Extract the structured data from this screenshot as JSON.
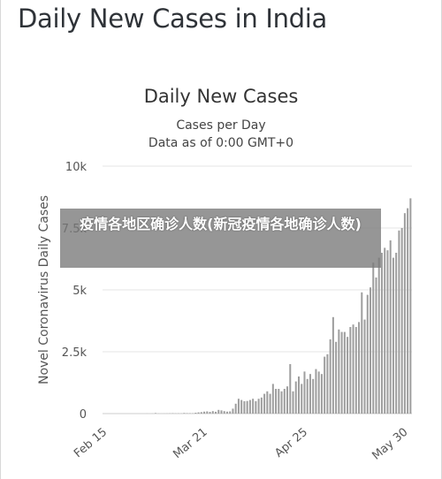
{
  "page": {
    "title": "Daily New Cases in India",
    "overlay_text": "疫情各地区确诊人数(新冠疫情各地确诊人数)"
  },
  "colors": {
    "bar": "#9e9e9e",
    "grid": "#e6e6e6",
    "axis": "#cccccc"
  },
  "chart_data": {
    "type": "bar",
    "title": "Daily New Cases",
    "subtitle_1": "Cases per Day",
    "subtitle_2": "Data as of 0:00 GMT+0",
    "ylabel": "Novel Coronavirus Daily Cases",
    "xlabel": "",
    "ylim": [
      0,
      10000
    ],
    "yticks": [
      "0",
      "2.5k",
      "5k",
      "7.5k",
      "10k"
    ],
    "ytick_values": [
      0,
      2500,
      5000,
      7500,
      10000
    ],
    "xtick_labels": [
      "Feb 15",
      "Mar 21",
      "Apr 25",
      "May 30"
    ],
    "xtick_dates": [
      "2020-02-15",
      "2020-03-21",
      "2020-04-25",
      "2020-05-30"
    ],
    "x": [
      "2020-02-15",
      "2020-02-16",
      "2020-02-17",
      "2020-02-18",
      "2020-02-19",
      "2020-02-20",
      "2020-02-21",
      "2020-02-22",
      "2020-02-23",
      "2020-02-24",
      "2020-02-25",
      "2020-02-26",
      "2020-02-27",
      "2020-02-28",
      "2020-02-29",
      "2020-03-01",
      "2020-03-02",
      "2020-03-03",
      "2020-03-04",
      "2020-03-05",
      "2020-03-06",
      "2020-03-07",
      "2020-03-08",
      "2020-03-09",
      "2020-03-10",
      "2020-03-11",
      "2020-03-12",
      "2020-03-13",
      "2020-03-14",
      "2020-03-15",
      "2020-03-16",
      "2020-03-17",
      "2020-03-18",
      "2020-03-19",
      "2020-03-20",
      "2020-03-21",
      "2020-03-22",
      "2020-03-23",
      "2020-03-24",
      "2020-03-25",
      "2020-03-26",
      "2020-03-27",
      "2020-03-28",
      "2020-03-29",
      "2020-03-30",
      "2020-03-31",
      "2020-04-01",
      "2020-04-02",
      "2020-04-03",
      "2020-04-04",
      "2020-04-05",
      "2020-04-06",
      "2020-04-07",
      "2020-04-08",
      "2020-04-09",
      "2020-04-10",
      "2020-04-11",
      "2020-04-12",
      "2020-04-13",
      "2020-04-14",
      "2020-04-15",
      "2020-04-16",
      "2020-04-17",
      "2020-04-18",
      "2020-04-19",
      "2020-04-20",
      "2020-04-21",
      "2020-04-22",
      "2020-04-23",
      "2020-04-24",
      "2020-04-25",
      "2020-04-26",
      "2020-04-27",
      "2020-04-28",
      "2020-04-29",
      "2020-04-30",
      "2020-05-01",
      "2020-05-02",
      "2020-05-03",
      "2020-05-04",
      "2020-05-05",
      "2020-05-06",
      "2020-05-07",
      "2020-05-08",
      "2020-05-09",
      "2020-05-10",
      "2020-05-11",
      "2020-05-12",
      "2020-05-13",
      "2020-05-14",
      "2020-05-15",
      "2020-05-16",
      "2020-05-17",
      "2020-05-18",
      "2020-05-19",
      "2020-05-20",
      "2020-05-21",
      "2020-05-22",
      "2020-05-23",
      "2020-05-24",
      "2020-05-25",
      "2020-05-26",
      "2020-05-27",
      "2020-05-28",
      "2020-05-29",
      "2020-05-30",
      "2020-05-31",
      "2020-06-01"
    ],
    "values": [
      0,
      0,
      0,
      0,
      0,
      0,
      0,
      0,
      0,
      0,
      0,
      0,
      0,
      0,
      0,
      2,
      0,
      2,
      22,
      2,
      1,
      3,
      5,
      9,
      15,
      8,
      10,
      7,
      25,
      18,
      16,
      14,
      35,
      50,
      60,
      80,
      90,
      70,
      100,
      75,
      150,
      130,
      100,
      80,
      90,
      200,
      400,
      600,
      550,
      500,
      510,
      550,
      600,
      500,
      600,
      650,
      800,
      900,
      800,
      1200,
      1000,
      1000,
      900,
      1000,
      1100,
      2000,
      900,
      1300,
      1500,
      1200,
      1700,
      1400,
      1600,
      1400,
      1800,
      1700,
      1600,
      2300,
      2400,
      3000,
      3900,
      2900,
      3400,
      3300,
      3300,
      3100,
      3500,
      3600,
      3500,
      3700,
      4900,
      3800,
      4800,
      5100,
      6100,
      5500,
      6300,
      6500,
      6700,
      6600,
      7000,
      6300,
      6500,
      7400,
      7500,
      8100,
      8300,
      8700
    ]
  }
}
